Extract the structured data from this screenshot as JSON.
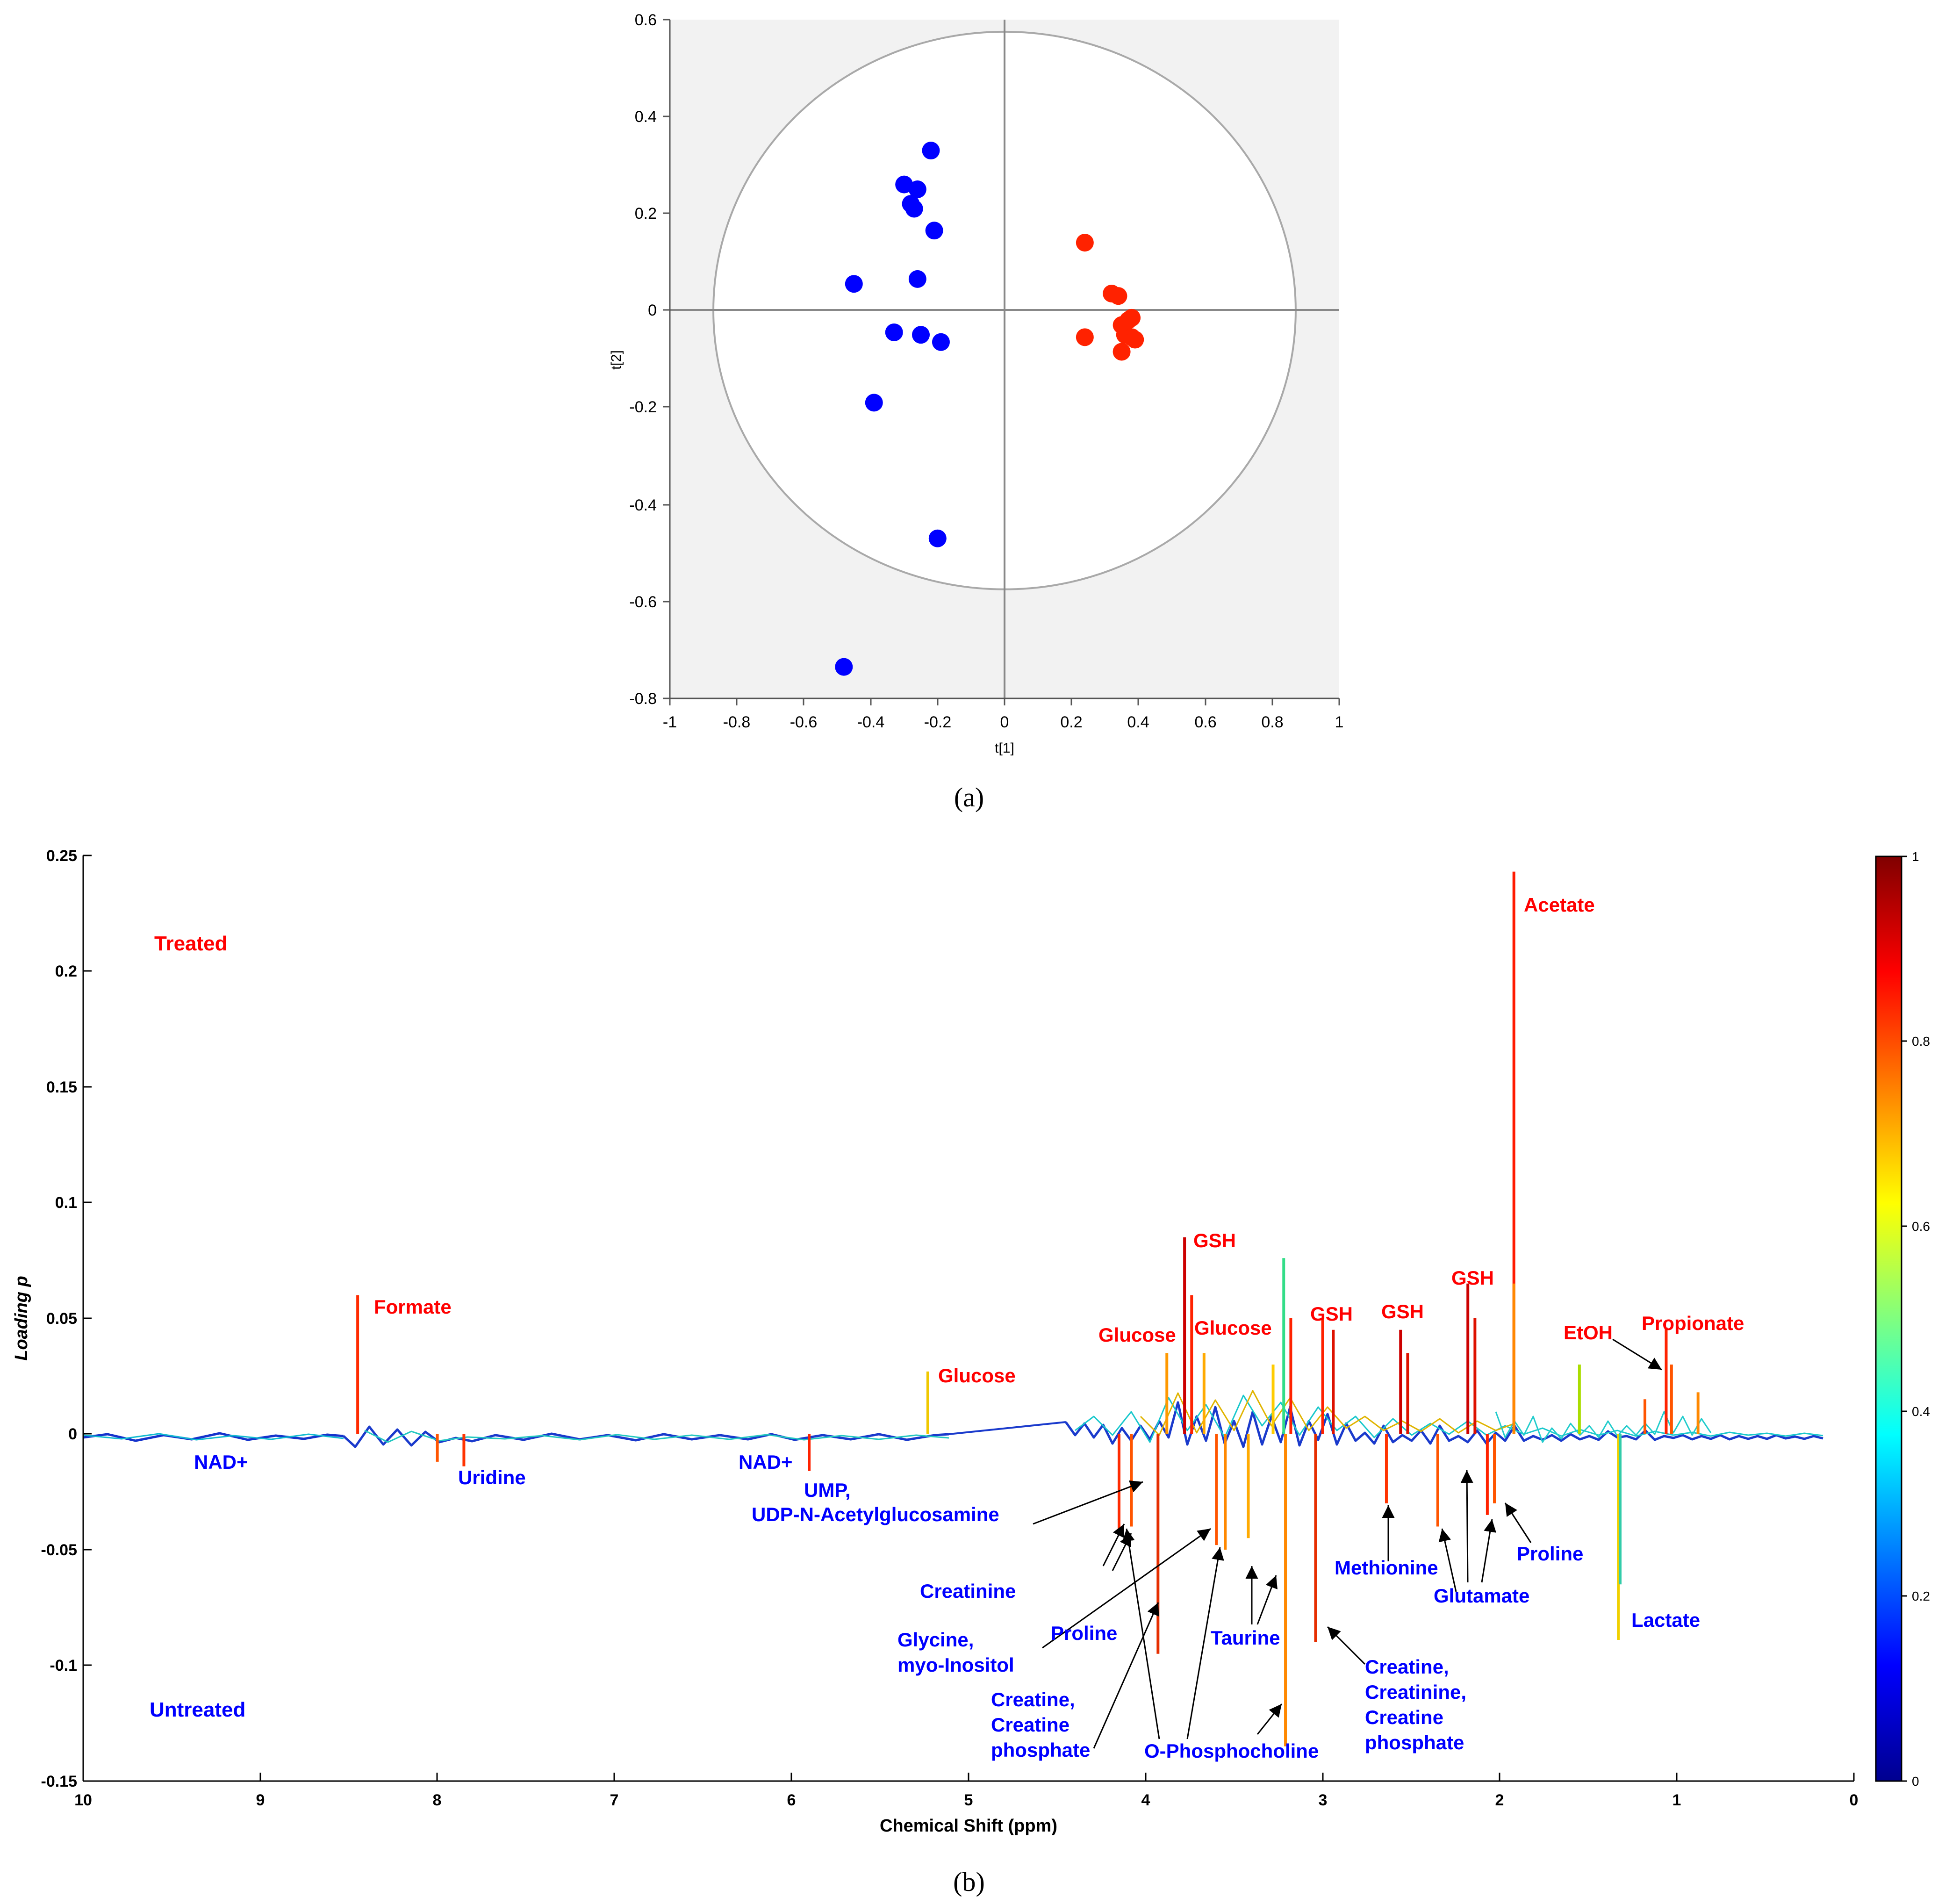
{
  "panel_a_caption": "(a)",
  "panel_b_caption": "(b)",
  "chart_data": [
    {
      "type": "scatter",
      "panel": "a",
      "title": "",
      "xlabel": "t[1]",
      "ylabel": "t[2]",
      "xlim": [
        -1,
        1
      ],
      "ylim": [
        -0.8,
        0.6
      ],
      "x_ticks": [
        "-1",
        "-0.8",
        "-0.6",
        "-0.4",
        "-0.2",
        "0",
        "0.2",
        "0.4",
        "0.6",
        "0.8",
        "1"
      ],
      "y_ticks": [
        "0.6",
        "0.4",
        "0.2",
        "0",
        "-0.2",
        "-0.4",
        "-0.6",
        "-0.8"
      ],
      "ellipse": {
        "rx": 0.87,
        "ry": 0.575
      },
      "colors": {
        "blue": "#0000ff",
        "red": "#ff2200",
        "plot_bg": "#f2f2f2",
        "ellipse": "#a9a9a9"
      },
      "series": [
        {
          "name": "Untreated",
          "color": "#0000ff",
          "x": [
            -0.22,
            -0.3,
            -0.26,
            -0.28,
            -0.27,
            -0.21,
            -0.26,
            -0.45,
            -0.33,
            -0.25,
            -0.19,
            -0.39,
            -0.2,
            -0.48
          ],
          "y": [
            0.33,
            0.26,
            0.25,
            0.22,
            0.21,
            0.165,
            0.065,
            0.055,
            -0.045,
            -0.05,
            -0.065,
            -0.19,
            -0.47,
            -0.735
          ]
        },
        {
          "name": "Treated",
          "color": "#ff2200",
          "x": [
            0.24,
            0.32,
            0.34,
            0.38,
            0.37,
            0.35,
            0.24,
            0.36,
            0.38,
            0.39,
            0.35
          ],
          "y": [
            0.14,
            0.035,
            0.03,
            -0.015,
            -0.02,
            -0.03,
            -0.055,
            -0.05,
            -0.055,
            -0.06,
            -0.085
          ]
        }
      ]
    },
    {
      "type": "line",
      "panel": "b",
      "title": "",
      "xlabel": "Chemical Shift (ppm)",
      "ylabel": "Loading p",
      "xlim": [
        10,
        0
      ],
      "ylim": [
        -0.15,
        0.25
      ],
      "x_ticks": [
        "10",
        "9",
        "8",
        "7",
        "6",
        "5",
        "4",
        "3",
        "2",
        "1",
        "0"
      ],
      "y_ticks": [
        "0.25",
        "0.2",
        "0.15",
        "0.1",
        "0.05",
        "0",
        "-0.05",
        "-0.1",
        "-0.15"
      ],
      "colorbar": {
        "range": [
          0,
          1
        ],
        "ticks": [
          "1",
          "0.8",
          "0.6",
          "0.4",
          "0.2",
          "0"
        ]
      },
      "group_labels": [
        {
          "text": "Treated",
          "color": "#ff0000"
        },
        {
          "text": "Untreated",
          "color": "#0000ff"
        }
      ],
      "peaks": [
        {
          "ppm": 8.45,
          "value": 0.06,
          "color": "#ff2a00"
        },
        {
          "ppm": 8.0,
          "value": -0.012,
          "color": "#ff5500"
        },
        {
          "ppm": 7.85,
          "value": -0.014,
          "color": "#ff3300"
        },
        {
          "ppm": 5.9,
          "value": -0.016,
          "color": "#ff2200"
        },
        {
          "ppm": 5.23,
          "value": 0.027,
          "color": "#f0c800"
        },
        {
          "ppm": 4.15,
          "value": -0.042,
          "color": "#ff2a00"
        },
        {
          "ppm": 4.08,
          "value": -0.04,
          "color": "#ff5500"
        },
        {
          "ppm": 3.93,
          "value": -0.095,
          "color": "#e62e00"
        },
        {
          "ppm": 3.88,
          "value": 0.035,
          "color": "#ff9900"
        },
        {
          "ppm": 3.78,
          "value": 0.085,
          "color": "#cc0000"
        },
        {
          "ppm": 3.74,
          "value": 0.06,
          "color": "#ff2200"
        },
        {
          "ppm": 3.67,
          "value": 0.035,
          "color": "#ffaa00"
        },
        {
          "ppm": 3.6,
          "value": -0.048,
          "color": "#ff5500"
        },
        {
          "ppm": 3.55,
          "value": -0.05,
          "color": "#ff8800"
        },
        {
          "ppm": 3.42,
          "value": -0.045,
          "color": "#ffaa00"
        },
        {
          "ppm": 3.28,
          "value": 0.03,
          "color": "#ffcc00"
        },
        {
          "ppm": 3.22,
          "value": 0.076,
          "color": "#33dd88"
        },
        {
          "ppm": 3.21,
          "value": -0.135,
          "color": "#ff8800"
        },
        {
          "ppm": 3.18,
          "value": 0.05,
          "color": "#ff2200"
        },
        {
          "ppm": 3.04,
          "value": -0.09,
          "color": "#e62e00"
        },
        {
          "ppm": 3.0,
          "value": 0.05,
          "color": "#ff2200"
        },
        {
          "ppm": 2.94,
          "value": 0.045,
          "color": "#dd1100"
        },
        {
          "ppm": 2.64,
          "value": -0.03,
          "color": "#ff3300"
        },
        {
          "ppm": 2.56,
          "value": 0.045,
          "color": "#cc0000"
        },
        {
          "ppm": 2.52,
          "value": 0.035,
          "color": "#dd1100"
        },
        {
          "ppm": 2.35,
          "value": -0.04,
          "color": "#ff5500"
        },
        {
          "ppm": 2.18,
          "value": 0.065,
          "color": "#cc0000"
        },
        {
          "ppm": 2.14,
          "value": 0.05,
          "color": "#dd1100"
        },
        {
          "ppm": 2.07,
          "value": -0.035,
          "color": "#ff2200"
        },
        {
          "ppm": 2.03,
          "value": -0.03,
          "color": "#ff5500"
        },
        {
          "ppm": 1.92,
          "value": 0.243,
          "color": "#ff1a00"
        },
        {
          "ppm": 1.92,
          "value": 0.065,
          "color": "#ff8800"
        },
        {
          "ppm": 1.55,
          "value": 0.03,
          "color": "#aadd00"
        },
        {
          "ppm": 1.33,
          "value": -0.089,
          "color": "#f0d000"
        },
        {
          "ppm": 1.32,
          "value": -0.065,
          "color": "#33ccaa"
        },
        {
          "ppm": 1.18,
          "value": 0.015,
          "color": "#ff5500"
        },
        {
          "ppm": 1.06,
          "value": 0.046,
          "color": "#ff2200"
        },
        {
          "ppm": 1.03,
          "value": 0.03,
          "color": "#ff5500"
        },
        {
          "ppm": 0.88,
          "value": 0.018,
          "color": "#ff8800"
        }
      ],
      "annotations": [
        {
          "text": "Formate",
          "color": "#ff0000"
        },
        {
          "text": "Glucose",
          "color": "#ff0000"
        },
        {
          "text": "GSH",
          "color": "#ff0000"
        },
        {
          "text": "Glucose",
          "color": "#ff0000"
        },
        {
          "text": "Glucose",
          "color": "#ff0000"
        },
        {
          "text": "GSH",
          "color": "#ff0000"
        },
        {
          "text": "GSH",
          "color": "#ff0000"
        },
        {
          "text": "GSH",
          "color": "#ff0000"
        },
        {
          "text": "Acetate",
          "color": "#ff0000"
        },
        {
          "text": "EtOH",
          "color": "#ff0000"
        },
        {
          "text": "Propionate",
          "color": "#ff0000"
        },
        {
          "text": "NAD+",
          "color": "#0000ff"
        },
        {
          "text": "Uridine",
          "color": "#0000ff"
        },
        {
          "text": "NAD+",
          "color": "#0000ff"
        },
        {
          "text": "UMP,",
          "color": "#0000ff"
        },
        {
          "text": "UDP-N-Acetylglucosamine",
          "color": "#0000ff"
        },
        {
          "text": "Creatinine",
          "color": "#0000ff"
        },
        {
          "text": "Glycine,",
          "color": "#0000ff"
        },
        {
          "text": "myo-Inositol",
          "color": "#0000ff"
        },
        {
          "text": "Proline",
          "color": "#0000ff"
        },
        {
          "text": "Creatine,",
          "color": "#0000ff"
        },
        {
          "text": "Creatine",
          "color": "#0000ff"
        },
        {
          "text": "phosphate",
          "color": "#0000ff"
        },
        {
          "text": "Taurine",
          "color": "#0000ff"
        },
        {
          "text": "O-Phosphocholine",
          "color": "#0000ff"
        },
        {
          "text": "Creatine,",
          "color": "#0000ff"
        },
        {
          "text": "Creatinine,",
          "color": "#0000ff"
        },
        {
          "text": "Creatine",
          "color": "#0000ff"
        },
        {
          "text": "phosphate",
          "color": "#0000ff"
        },
        {
          "text": "Methionine",
          "color": "#0000ff"
        },
        {
          "text": "Glutamate",
          "color": "#0000ff"
        },
        {
          "text": "Proline",
          "color": "#0000ff"
        },
        {
          "text": "Lactate",
          "color": "#0000ff"
        }
      ]
    }
  ]
}
